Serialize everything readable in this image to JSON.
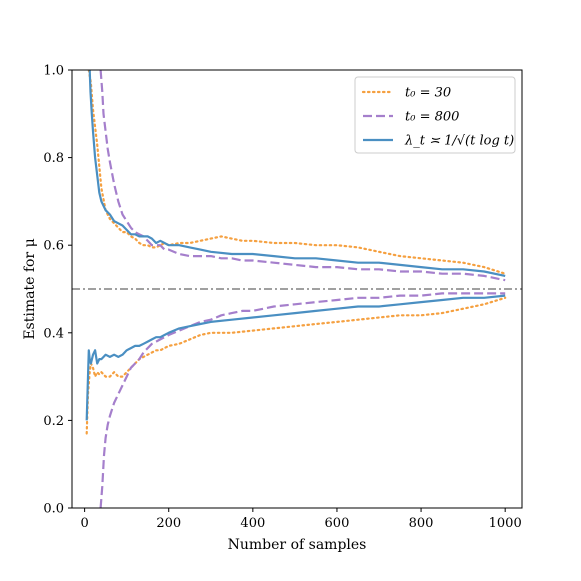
{
  "chart_data": {
    "type": "line",
    "xlabel": "Number of samples",
    "ylabel": "Estimate for μ",
    "xlim": [
      -30,
      1040
    ],
    "ylim": [
      0.0,
      1.0
    ],
    "xticks": [
      0,
      200,
      400,
      600,
      800,
      1000
    ],
    "xtick_labels": [
      "0",
      "200",
      "400",
      "600",
      "800",
      "1000"
    ],
    "yticks": [
      0.0,
      0.2,
      0.4,
      0.6,
      0.8,
      1.0
    ],
    "ytick_labels": [
      "0.0",
      "0.2",
      "0.4",
      "0.6",
      "0.8",
      "1.0"
    ],
    "grid": false,
    "legend_position": "top-right",
    "reference_line": {
      "y": 0.5,
      "style": "dash-dot",
      "color": "#808080"
    },
    "series": [
      {
        "name": "t₀ = 30",
        "style": "dotted",
        "color": "#f5a040",
        "upper": {
          "x": [
            10,
            15,
            20,
            25,
            30,
            35,
            40,
            50,
            60,
            70,
            80,
            90,
            100,
            110,
            120,
            130,
            140,
            150,
            160,
            170,
            180,
            190,
            200,
            225,
            250,
            275,
            300,
            325,
            350,
            375,
            400,
            450,
            500,
            550,
            600,
            650,
            700,
            750,
            800,
            850,
            900,
            950,
            1000
          ],
          "y": [
            1.0,
            0.97,
            0.91,
            0.87,
            0.83,
            0.78,
            0.73,
            0.68,
            0.66,
            0.65,
            0.64,
            0.63,
            0.63,
            0.62,
            0.615,
            0.605,
            0.6,
            0.6,
            0.595,
            0.595,
            0.6,
            0.605,
            0.6,
            0.605,
            0.605,
            0.61,
            0.615,
            0.62,
            0.615,
            0.61,
            0.61,
            0.605,
            0.605,
            0.6,
            0.6,
            0.595,
            0.585,
            0.575,
            0.57,
            0.565,
            0.56,
            0.55,
            0.535
          ]
        },
        "lower": {
          "x": [
            5,
            8,
            12,
            15,
            20,
            25,
            30,
            35,
            40,
            50,
            60,
            70,
            80,
            90,
            100,
            110,
            120,
            130,
            140,
            150,
            160,
            170,
            180,
            190,
            200,
            225,
            250,
            275,
            300,
            350,
            400,
            450,
            500,
            550,
            600,
            650,
            700,
            750,
            800,
            850,
            900,
            950,
            1000
          ],
          "y": [
            0.17,
            0.26,
            0.31,
            0.33,
            0.32,
            0.3,
            0.31,
            0.305,
            0.31,
            0.3,
            0.3,
            0.31,
            0.3,
            0.3,
            0.31,
            0.32,
            0.33,
            0.34,
            0.345,
            0.35,
            0.355,
            0.36,
            0.36,
            0.365,
            0.37,
            0.375,
            0.385,
            0.395,
            0.4,
            0.4,
            0.405,
            0.41,
            0.415,
            0.42,
            0.425,
            0.43,
            0.435,
            0.44,
            0.44,
            0.445,
            0.455,
            0.465,
            0.48
          ]
        }
      },
      {
        "name": "t₀ = 800",
        "style": "dashed",
        "color": "#a57fcc",
        "upper": {
          "x": [
            38,
            42,
            45,
            50,
            55,
            60,
            70,
            80,
            90,
            100,
            110,
            120,
            130,
            140,
            150,
            160,
            170,
            180,
            190,
            200,
            225,
            250,
            275,
            300,
            325,
            350,
            375,
            400,
            450,
            500,
            550,
            600,
            650,
            700,
            750,
            800,
            850,
            900,
            950,
            1000
          ],
          "y": [
            1.0,
            0.95,
            0.9,
            0.86,
            0.82,
            0.79,
            0.74,
            0.7,
            0.67,
            0.655,
            0.64,
            0.63,
            0.625,
            0.62,
            0.61,
            0.6,
            0.6,
            0.6,
            0.59,
            0.59,
            0.58,
            0.575,
            0.575,
            0.575,
            0.57,
            0.57,
            0.565,
            0.565,
            0.56,
            0.555,
            0.55,
            0.55,
            0.545,
            0.545,
            0.54,
            0.54,
            0.535,
            0.535,
            0.53,
            0.52
          ]
        },
        "lower": {
          "x": [
            38,
            42,
            46,
            50,
            55,
            60,
            70,
            80,
            90,
            100,
            110,
            120,
            130,
            140,
            150,
            160,
            170,
            180,
            190,
            200,
            225,
            250,
            275,
            300,
            325,
            350,
            375,
            400,
            450,
            500,
            550,
            600,
            650,
            700,
            750,
            800,
            850,
            900,
            950,
            1000
          ],
          "y": [
            0.0,
            0.05,
            0.12,
            0.16,
            0.19,
            0.21,
            0.24,
            0.26,
            0.28,
            0.3,
            0.32,
            0.33,
            0.34,
            0.355,
            0.365,
            0.375,
            0.38,
            0.385,
            0.39,
            0.395,
            0.405,
            0.415,
            0.425,
            0.43,
            0.44,
            0.445,
            0.45,
            0.45,
            0.46,
            0.465,
            0.47,
            0.475,
            0.48,
            0.48,
            0.485,
            0.485,
            0.49,
            0.49,
            0.49,
            0.49
          ]
        }
      },
      {
        "name": "λ_t ≍ 1/√(t log t)",
        "style": "solid",
        "color": "#4a8fc2",
        "upper": {
          "x": [
            12,
            14,
            17,
            20,
            25,
            30,
            35,
            40,
            50,
            60,
            70,
            80,
            90,
            100,
            110,
            120,
            130,
            140,
            150,
            160,
            170,
            180,
            190,
            200,
            225,
            250,
            275,
            300,
            350,
            400,
            450,
            500,
            550,
            600,
            650,
            700,
            750,
            800,
            850,
            900,
            950,
            1000
          ],
          "y": [
            1.0,
            0.95,
            0.9,
            0.86,
            0.8,
            0.76,
            0.72,
            0.7,
            0.68,
            0.67,
            0.655,
            0.65,
            0.645,
            0.635,
            0.625,
            0.625,
            0.62,
            0.62,
            0.62,
            0.615,
            0.605,
            0.61,
            0.605,
            0.6,
            0.6,
            0.595,
            0.59,
            0.585,
            0.58,
            0.58,
            0.575,
            0.57,
            0.57,
            0.565,
            0.56,
            0.56,
            0.555,
            0.55,
            0.545,
            0.545,
            0.54,
            0.53
          ]
        },
        "lower": {
          "x": [
            5,
            8,
            10,
            12,
            15,
            20,
            25,
            30,
            35,
            40,
            50,
            60,
            70,
            80,
            90,
            100,
            110,
            120,
            130,
            140,
            150,
            160,
            170,
            180,
            190,
            200,
            225,
            250,
            275,
            300,
            350,
            400,
            450,
            500,
            550,
            600,
            650,
            700,
            750,
            800,
            850,
            900,
            950,
            1000
          ],
          "y": [
            0.2,
            0.3,
            0.36,
            0.34,
            0.33,
            0.35,
            0.36,
            0.33,
            0.34,
            0.34,
            0.35,
            0.345,
            0.35,
            0.345,
            0.35,
            0.36,
            0.365,
            0.37,
            0.37,
            0.375,
            0.38,
            0.385,
            0.39,
            0.39,
            0.395,
            0.4,
            0.41,
            0.415,
            0.42,
            0.425,
            0.43,
            0.435,
            0.44,
            0.445,
            0.45,
            0.455,
            0.46,
            0.46,
            0.465,
            0.47,
            0.475,
            0.48,
            0.48,
            0.485
          ]
        }
      }
    ]
  }
}
